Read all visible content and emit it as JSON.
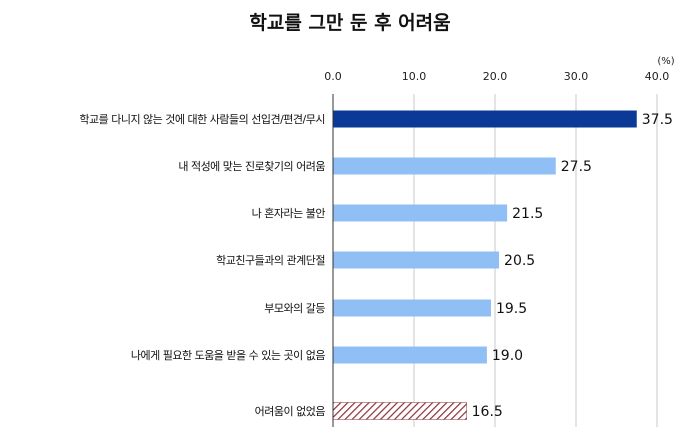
{
  "title": "학교를 그만 둔 후 어려움",
  "unit_label": "(%)",
  "colors": {
    "highlight_bar": "#0a3a96",
    "bar": "#8fbff5",
    "hatch_line": "#8b2f3a",
    "grid": "#c8c8c8",
    "axis": "#333333"
  },
  "chart_data": {
    "type": "bar",
    "orientation": "horizontal",
    "title": "학교를 그만 둔 후 어려움",
    "unit": "(%)",
    "xlim": [
      0,
      40
    ],
    "ticks": [
      0,
      10,
      20,
      30,
      40
    ],
    "tick_labels": [
      "0.0",
      "10.0",
      "20.0",
      "30.0",
      "40.0"
    ],
    "grid": true,
    "categories": [
      "학교를 다니지 않는 것에 대한 사람들의 선입견/편견/무시",
      "내 적성에 맞는 진로찾기의 어려움",
      "나 혼자라는 불안",
      "학교친구들과의 관계단절",
      "부모와의 갈등",
      "나에게 필요한 도움을 받을 수 있는 곳이 없음",
      "어려움이 없었음"
    ],
    "values": [
      37.5,
      27.5,
      21.5,
      20.5,
      19.5,
      19.0,
      16.5
    ],
    "value_labels": [
      "37.5",
      "27.5",
      "21.5",
      "20.5",
      "19.5",
      "19.0",
      "16.5"
    ],
    "bar_styles": [
      "highlight",
      "normal",
      "normal",
      "normal",
      "normal",
      "normal",
      "hatched"
    ]
  }
}
